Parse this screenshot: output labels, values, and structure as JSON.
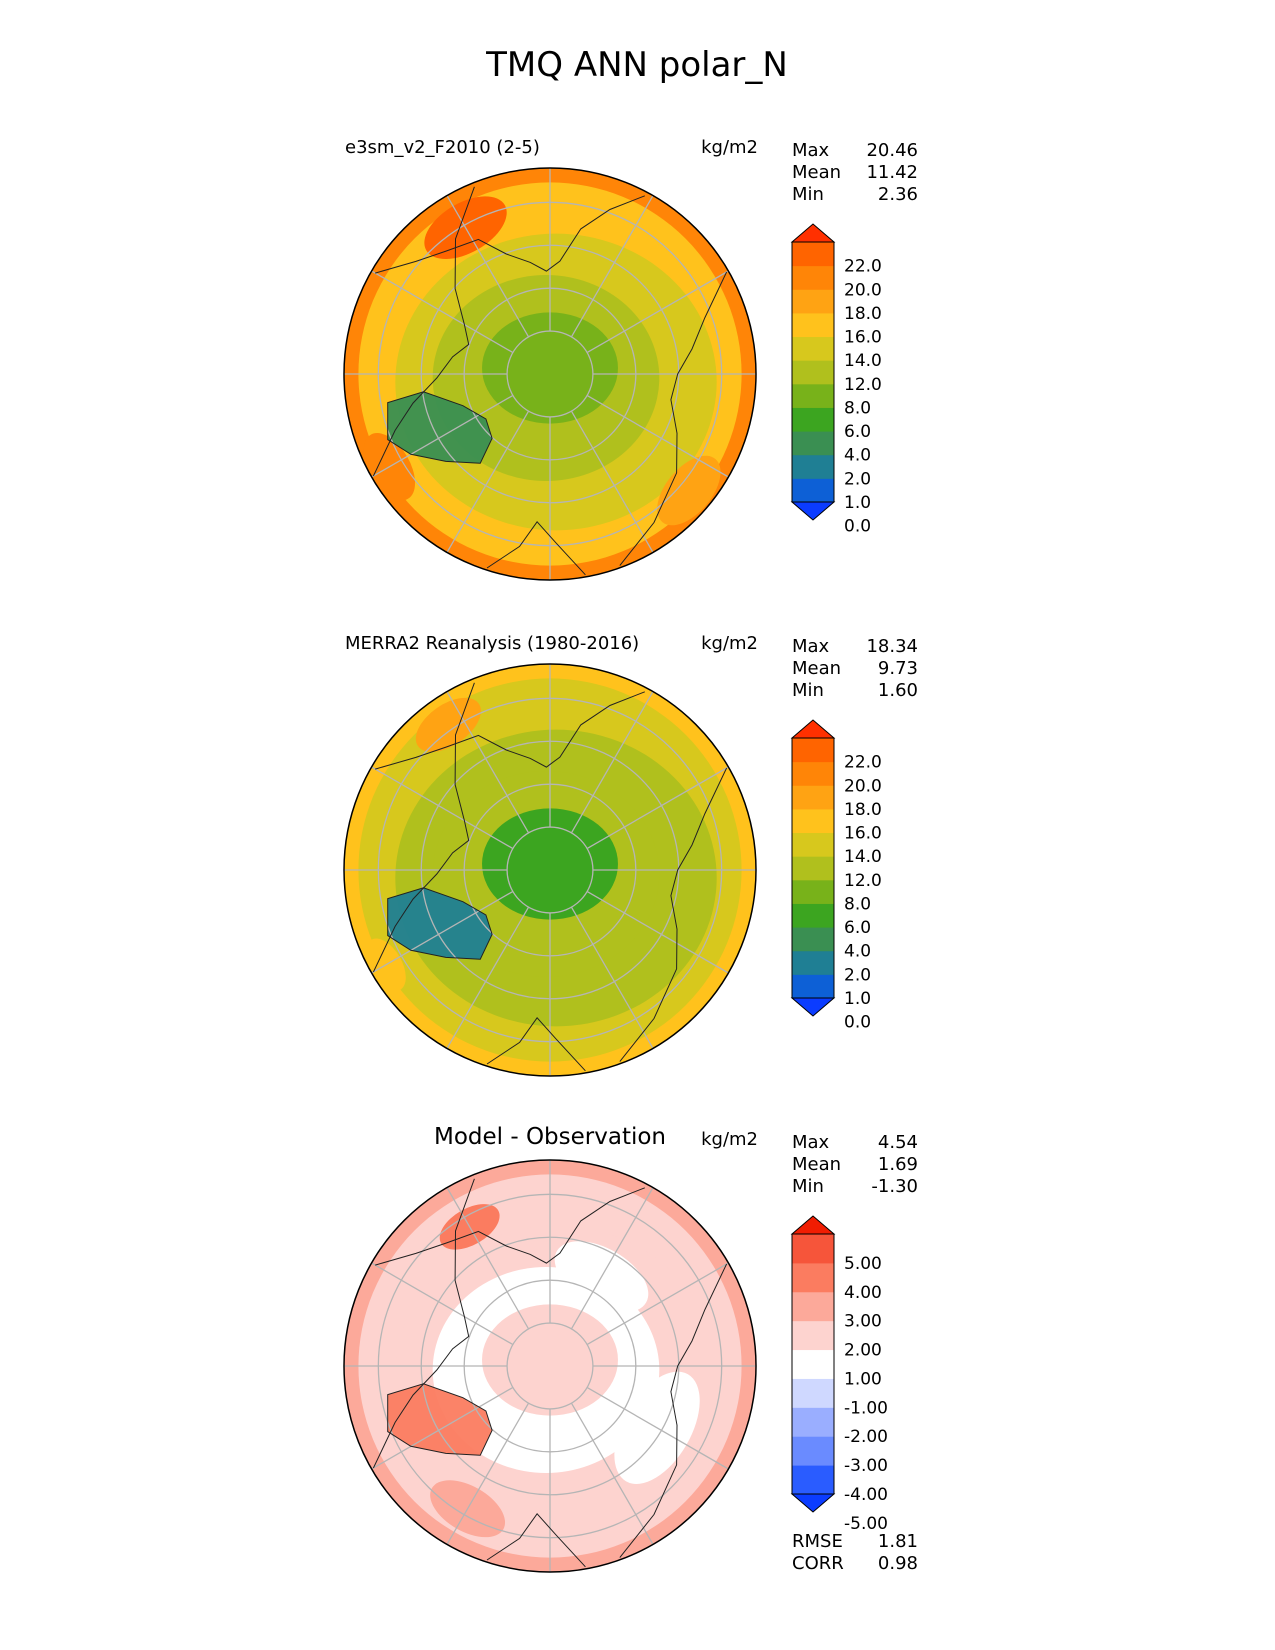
{
  "title": "TMQ ANN polar_N",
  "colors": {
    "abs_levels": [
      "#0b3cff",
      "#0d60d6",
      "#1f7f94",
      "#3a8f52",
      "#3ca520",
      "#78b21a",
      "#b0c01d",
      "#d7c81d",
      "#ffc21c",
      "#ffa313",
      "#ff8507",
      "#ff6400",
      "#ff3000"
    ],
    "diff_levels": [
      "#0b3cff",
      "#2a5cff",
      "#6a8bff",
      "#9aaeff",
      "#cfd8ff",
      "#ffffff",
      "#fdd3cf",
      "#fca99a",
      "#fb7c60",
      "#f6553a",
      "#f01d02"
    ],
    "grid": "#b5b5b5",
    "coast": "#222222"
  },
  "panels": [
    {
      "id": "test",
      "name": "e3sm_v2_F2010 (2-5)",
      "units": "kg/m2",
      "stats": [
        {
          "label": "Max",
          "value": "20.46"
        },
        {
          "label": "Mean",
          "value": "11.42"
        },
        {
          "label": "Min",
          "value": "2.36"
        }
      ],
      "colorbar": {
        "ticks": [
          "22.0",
          "20.0",
          "18.0",
          "16.0",
          "14.0",
          "12.0",
          "8.0",
          "6.0",
          "4.0",
          "2.0",
          "1.0",
          "0.0"
        ],
        "palette": "abs_levels"
      }
    },
    {
      "id": "ref",
      "name": "MERRA2 Reanalysis (1980-2016)",
      "units": "kg/m2",
      "stats": [
        {
          "label": "Max",
          "value": "18.34"
        },
        {
          "label": "Mean",
          "value": "9.73"
        },
        {
          "label": "Min",
          "value": "1.60"
        }
      ],
      "colorbar": {
        "ticks": [
          "22.0",
          "20.0",
          "18.0",
          "16.0",
          "14.0",
          "12.0",
          "8.0",
          "6.0",
          "4.0",
          "2.0",
          "1.0",
          "0.0"
        ],
        "palette": "abs_levels"
      }
    },
    {
      "id": "diff",
      "name": "Model - Observation",
      "units": "kg/m2",
      "stats": [
        {
          "label": "Max",
          "value": "4.54"
        },
        {
          "label": "Mean",
          "value": "1.69"
        },
        {
          "label": "Min",
          "value": "-1.30"
        }
      ],
      "colorbar": {
        "ticks": [
          "5.00",
          "4.00",
          "3.00",
          "2.00",
          "1.00",
          "-1.00",
          "-2.00",
          "-3.00",
          "-4.00",
          "-5.00"
        ],
        "palette": "diff_levels"
      },
      "extra": [
        {
          "label": "RMSE",
          "value": "1.81"
        },
        {
          "label": "CORR",
          "value": "0.98"
        }
      ]
    }
  ],
  "chart_data": [
    {
      "type": "heatmap",
      "projection": "north-polar-stereographic",
      "title": "e3sm_v2_F2010 (2-5)",
      "units": "kg/m2",
      "levels": [
        0,
        1,
        2,
        4,
        6,
        8,
        12,
        14,
        16,
        18,
        20,
        22
      ],
      "zones": [
        {
          "region": "pole",
          "value": 8
        },
        {
          "region": "greenland",
          "value": 4
        },
        {
          "region": "high-lat ring",
          "value": 10
        },
        {
          "region": "mid-lat ring",
          "value": 13
        },
        {
          "region": "outer ring",
          "value": 15
        },
        {
          "region": "rim",
          "value": 18
        }
      ],
      "stats": {
        "max": 20.46,
        "mean": 11.42,
        "min": 2.36
      }
    },
    {
      "type": "heatmap",
      "projection": "north-polar-stereographic",
      "title": "MERRA2 Reanalysis (1980-2016)",
      "units": "kg/m2",
      "levels": [
        0,
        1,
        2,
        4,
        6,
        8,
        12,
        14,
        16,
        18,
        20,
        22
      ],
      "zones": [
        {
          "region": "pole",
          "value": 7
        },
        {
          "region": "greenland",
          "value": 3
        },
        {
          "region": "high-lat ring",
          "value": 9
        },
        {
          "region": "mid-lat ring",
          "value": 11
        },
        {
          "region": "outer ring",
          "value": 13
        },
        {
          "region": "rim",
          "value": 15
        }
      ],
      "stats": {
        "max": 18.34,
        "mean": 9.73,
        "min": 1.6
      }
    },
    {
      "type": "heatmap",
      "projection": "north-polar-stereographic",
      "title": "Model - Observation",
      "units": "kg/m2",
      "levels": [
        -5,
        -4,
        -3,
        -2,
        -1,
        1,
        2,
        3,
        4,
        5
      ],
      "zones": [
        {
          "region": "pole",
          "value": 1.5
        },
        {
          "region": "pacific sector",
          "value": 0.5
        },
        {
          "region": "atlantic sector",
          "value": 2.5
        },
        {
          "region": "rim",
          "value": 2.5
        }
      ],
      "stats": {
        "max": 4.54,
        "mean": 1.69,
        "min": -1.3,
        "rmse": 1.81,
        "corr": 0.98
      }
    }
  ]
}
